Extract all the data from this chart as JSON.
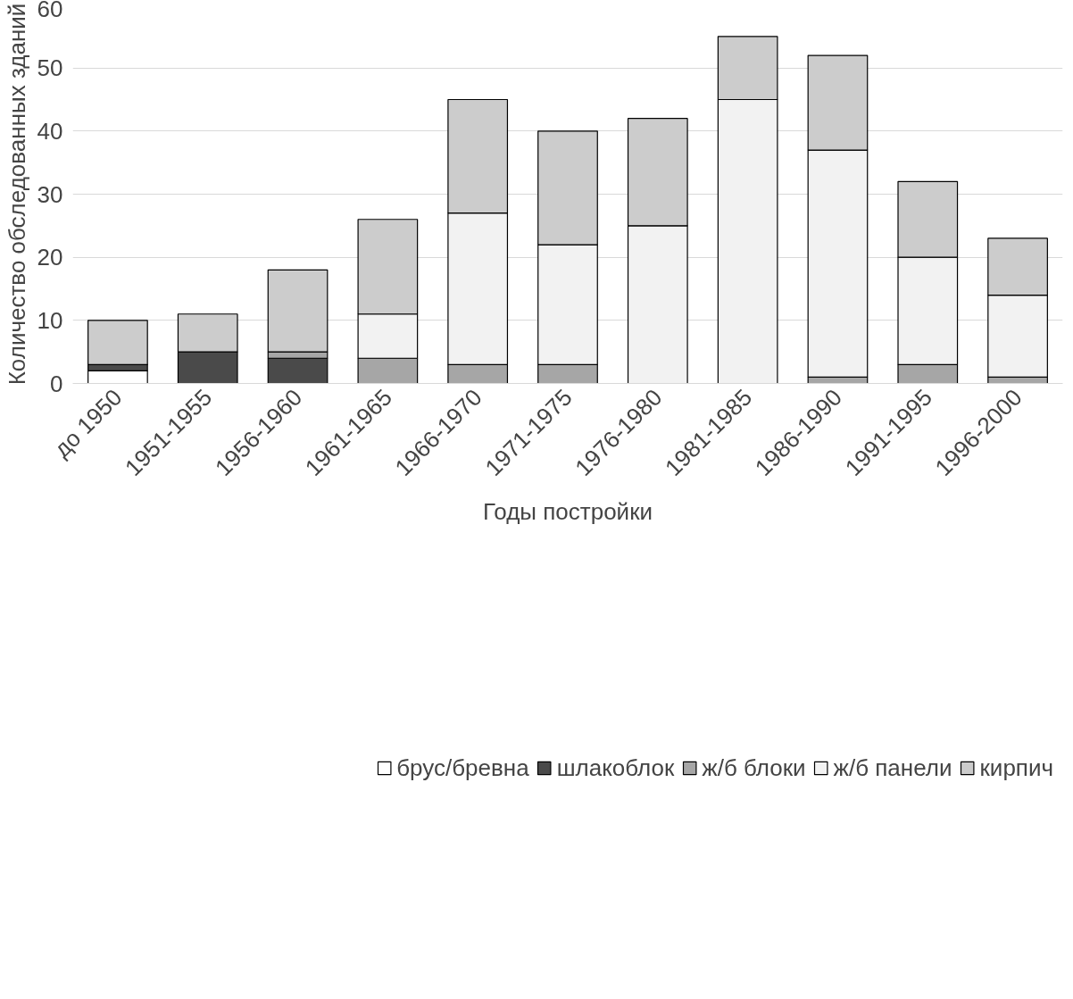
{
  "chart_data": {
    "type": "bar",
    "stacked": true,
    "xlabel": "Годы постройки",
    "ylabel": "Количество обследованных зданий",
    "categories": [
      "до 1950",
      "1951-1955",
      "1956-1960",
      "1961-1965",
      "1966-1970",
      "1971-1975",
      "1976-1980",
      "1981-1985",
      "1986-1990",
      "1991-1995",
      "1996-2000"
    ],
    "series": [
      {
        "name": "брус/бревна",
        "color": "#ffffff",
        "values": [
          2,
          0,
          0,
          0,
          0,
          0,
          0,
          0,
          0,
          0,
          0
        ]
      },
      {
        "name": "шлакоблок",
        "color": "#4a4a4a",
        "values": [
          1,
          5,
          4,
          0,
          0,
          0,
          0,
          0,
          0,
          0,
          0
        ]
      },
      {
        "name": "ж/б блоки",
        "color": "#a6a6a6",
        "values": [
          0,
          0,
          1,
          4,
          3,
          3,
          0,
          0,
          1,
          3,
          1
        ]
      },
      {
        "name": "ж/б панели",
        "color": "#f2f2f2",
        "values": [
          0,
          0,
          0,
          7,
          24,
          19,
          25,
          45,
          36,
          17,
          13
        ]
      },
      {
        "name": "кирпич",
        "color": "#cccccc",
        "values": [
          7,
          6,
          13,
          15,
          18,
          18,
          17,
          10,
          15,
          12,
          9
        ]
      }
    ],
    "ylim": [
      0,
      60
    ],
    "yticks": [
      0,
      10,
      20,
      30,
      40,
      50,
      60
    ],
    "grid": "y",
    "legend": "bottom"
  }
}
